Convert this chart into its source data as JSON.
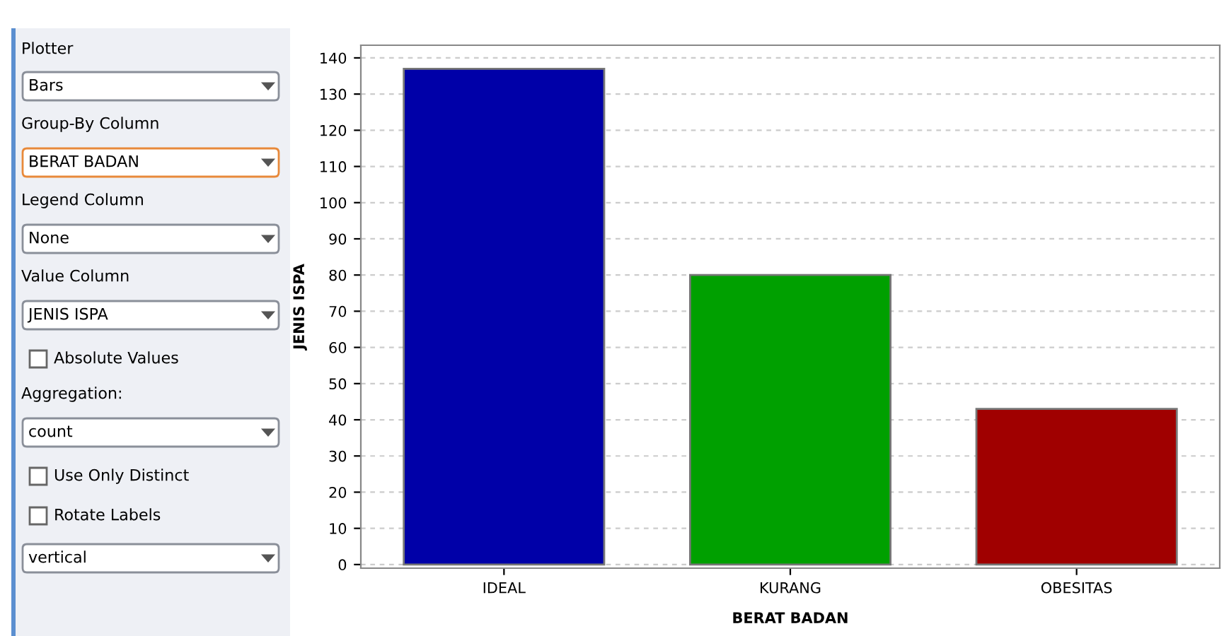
{
  "chart_data": [
    {
      "type": "other",
      "annotations": [
        "Plotter",
        "Bars",
        "Group-By Column",
        "BERAT BADAN",
        "Legend Column",
        "None",
        "Value Column",
        "JENIS ISPA",
        "Absolute Values",
        "Aggregation:",
        "count",
        "Use Only Distinct",
        "Rotate Labels",
        "vertical"
      ]
    },
    {
      "type": "bar",
      "xlabel": "BERAT BADAN",
      "ylabel": "JENIS ISPA",
      "categories": [
        "IDEAL",
        "KURANG",
        "OBESITAS"
      ],
      "values": [
        137,
        80,
        43
      ],
      "colors": [
        "#0000a8",
        "#00a000",
        "#a00000"
      ],
      "ylim": [
        -1,
        143.5
      ],
      "yticks": [
        0,
        10,
        20,
        30,
        40,
        50,
        60,
        70,
        80,
        90,
        100,
        110,
        120,
        130,
        140
      ],
      "grid": "y"
    }
  ]
}
